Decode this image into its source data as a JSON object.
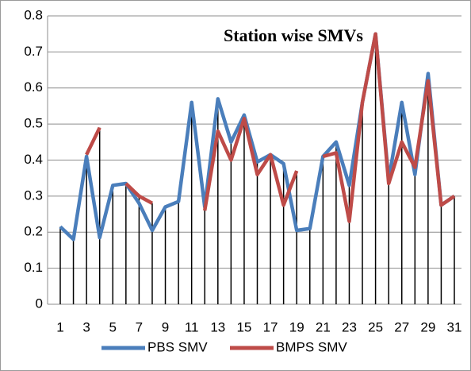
{
  "chart_data": {
    "type": "line",
    "title": "Station wise SMVs",
    "categories": [
      "1",
      null,
      "3",
      null,
      "5",
      null,
      "7",
      null,
      "9",
      null,
      "11",
      null,
      "13",
      null,
      "15",
      null,
      "17",
      null,
      "19",
      null,
      "21",
      null,
      "23",
      null,
      "25",
      null,
      "27",
      null,
      "29",
      null,
      "31"
    ],
    "series": [
      {
        "name": "PBS SMV",
        "color": "#4a7ebb",
        "values": [
          0.215,
          0.18,
          0.41,
          0.185,
          0.33,
          0.335,
          0.28,
          0.205,
          0.27,
          0.285,
          0.56,
          0.27,
          0.57,
          0.45,
          0.525,
          0.395,
          0.415,
          0.39,
          0.205,
          0.21,
          0.41,
          0.45,
          0.33,
          0.56,
          0.75,
          0.345,
          0.56,
          0.36,
          0.64,
          0.275,
          0.3
        ]
      },
      {
        "name": "BMPS SMV",
        "color": "#be4b48",
        "values": [
          null,
          null,
          0.415,
          0.49,
          null,
          0.335,
          0.3,
          0.28,
          null,
          null,
          null,
          0.26,
          0.48,
          0.4,
          0.515,
          0.36,
          0.415,
          0.275,
          0.37,
          null,
          0.41,
          0.42,
          0.23,
          0.56,
          0.75,
          0.335,
          0.45,
          0.38,
          0.62,
          0.275,
          0.3
        ]
      }
    ],
    "ylim": [
      0,
      0.8
    ],
    "yticks": [
      0,
      0.1,
      0.2,
      0.3,
      0.4,
      0.5,
      0.6,
      0.7,
      0.8
    ],
    "grid": true,
    "drop_lines": true,
    "legend": "bottom"
  }
}
